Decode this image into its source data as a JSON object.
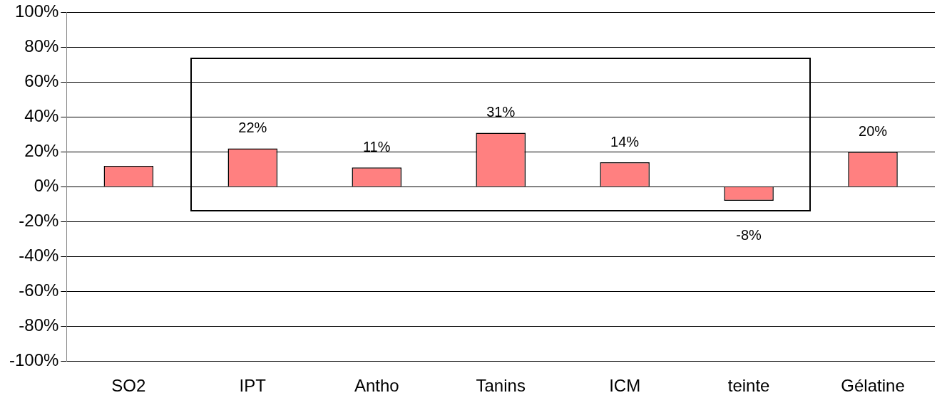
{
  "chart_data": {
    "type": "bar",
    "categories": [
      "SO2",
      "IPT",
      "Antho",
      "Tanins",
      "ICM",
      "teinte",
      "Gélatine"
    ],
    "values": [
      12,
      22,
      11,
      31,
      14,
      -8,
      20
    ],
    "value_labels": [
      null,
      "22%",
      "11%",
      "31%",
      "14%",
      "-8%",
      "20%"
    ],
    "color": "#ff8080",
    "ylim": [
      -100,
      100
    ],
    "yticks": [
      {
        "value": -100,
        "label": "-100%"
      },
      {
        "value": -80,
        "label": "-80%"
      },
      {
        "value": -60,
        "label": "-60%"
      },
      {
        "value": -40,
        "label": "-40%"
      },
      {
        "value": -20,
        "label": "-20%"
      },
      {
        "value": 0,
        "label": "0%"
      },
      {
        "value": 20,
        "label": "20%"
      },
      {
        "value": 40,
        "label": "40%"
      },
      {
        "value": 60,
        "label": "60%"
      },
      {
        "value": 80,
        "label": "80%"
      },
      {
        "value": 100,
        "label": "100%"
      }
    ],
    "grid": "y",
    "legend": false
  }
}
